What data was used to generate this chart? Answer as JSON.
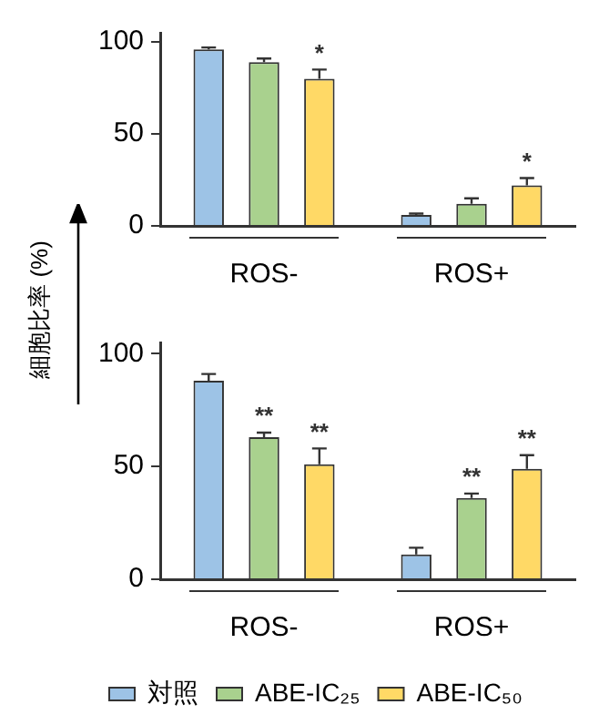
{
  "chart_data": [
    {
      "type": "bar",
      "ylabel": "細胞比率 (%)",
      "categories": [
        "ROS-",
        "ROS+"
      ],
      "ylim": [
        0,
        105
      ],
      "yticks": [
        0,
        50,
        100
      ],
      "series": [
        {
          "color": "#9dc3e6",
          "values": [
            96,
            6
          ],
          "errors": [
            1,
            0.7
          ]
        },
        {
          "color": "#a9d18e",
          "values": [
            89,
            12
          ],
          "errors": [
            2,
            3
          ]
        },
        {
          "color": "#ffd966",
          "values": [
            80,
            22
          ],
          "errors": [
            5,
            4
          ],
          "value_labels": [
            "*",
            "*"
          ]
        }
      ]
    },
    {
      "type": "bar",
      "categories": [
        "ROS-",
        "ROS+"
      ],
      "ylim": [
        0,
        105
      ],
      "yticks": [
        0,
        50,
        100
      ],
      "legend": "bottom",
      "series": [
        {
          "name": "対照",
          "color": "#9dc3e6",
          "values": [
            88,
            11
          ],
          "errors": [
            3,
            3
          ]
        },
        {
          "name": "ABE-IC₂₅",
          "color": "#a9d18e",
          "values": [
            63,
            36
          ],
          "errors": [
            2,
            2
          ],
          "value_labels": [
            "**",
            "**"
          ]
        },
        {
          "name": "ABE-IC₅₀",
          "color": "#ffd966",
          "values": [
            51,
            49
          ],
          "errors": [
            7,
            6
          ],
          "value_labels": [
            "**",
            "**"
          ]
        }
      ]
    }
  ]
}
